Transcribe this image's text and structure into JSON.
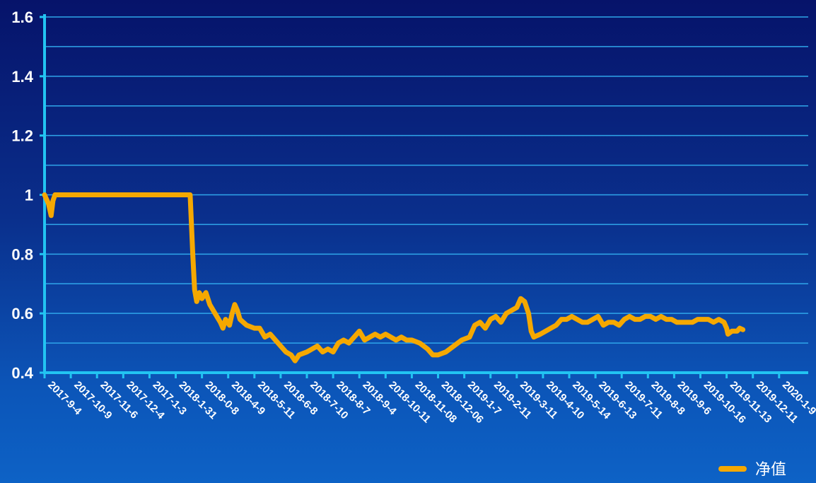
{
  "chart_data": {
    "type": "line",
    "title": "",
    "xlabel": "",
    "ylabel": "",
    "ylim": [
      0.4,
      1.6
    ],
    "yticks": [
      "0.4",
      "0.6",
      "0.8",
      "1",
      "1.2",
      "1.4",
      "1.6"
    ],
    "grid": true,
    "legend_position": "bottom-right",
    "colors": {
      "line": "#f5a800",
      "grid": "#2fa6ea",
      "axis": "#22c4f2",
      "text": "#ffffff"
    },
    "x_tick_labels": [
      "2017-9-4",
      "2017-10-9",
      "2017-11-6",
      "2017-12-4",
      "2017-1-3",
      "2018-1-31",
      "2018-0-8",
      "2018-4-9",
      "2018-5-11",
      "2018-6-8",
      "2018-7-10",
      "2018-8-7",
      "2018-9-4",
      "2018-10-11",
      "2018-11-08",
      "2018-12-06",
      "2019-1-7",
      "2019-2-11",
      "2019-3-11",
      "2019-4-10",
      "2019-5-14",
      "2019-6-13",
      "2019-7-11",
      "2019-8-8",
      "2019-9-6",
      "2019-10-16",
      "2019-11-13",
      "2019-12-11",
      "2020-1-9"
    ],
    "series": [
      {
        "name": "净值",
        "points": [
          [
            0,
            1.0
          ],
          [
            0.15,
            0.97
          ],
          [
            0.25,
            0.93
          ],
          [
            0.32,
            0.98
          ],
          [
            0.4,
            1.0
          ],
          [
            1,
            1.0
          ],
          [
            2,
            1.0
          ],
          [
            3,
            1.0
          ],
          [
            4,
            1.0
          ],
          [
            5,
            1.0
          ],
          [
            5.55,
            1.0
          ],
          [
            5.65,
            0.8
          ],
          [
            5.72,
            0.68
          ],
          [
            5.8,
            0.64
          ],
          [
            5.9,
            0.67
          ],
          [
            6.0,
            0.65
          ],
          [
            6.15,
            0.67
          ],
          [
            6.3,
            0.63
          ],
          [
            6.5,
            0.6
          ],
          [
            6.7,
            0.57
          ],
          [
            6.8,
            0.55
          ],
          [
            6.9,
            0.58
          ],
          [
            7.05,
            0.56
          ],
          [
            7.15,
            0.6
          ],
          [
            7.25,
            0.63
          ],
          [
            7.35,
            0.61
          ],
          [
            7.45,
            0.58
          ],
          [
            7.7,
            0.56
          ],
          [
            8.0,
            0.55
          ],
          [
            8.2,
            0.55
          ],
          [
            8.4,
            0.52
          ],
          [
            8.6,
            0.53
          ],
          [
            8.8,
            0.51
          ],
          [
            9.0,
            0.49
          ],
          [
            9.2,
            0.47
          ],
          [
            9.4,
            0.46
          ],
          [
            9.55,
            0.44
          ],
          [
            9.7,
            0.46
          ],
          [
            10.0,
            0.47
          ],
          [
            10.2,
            0.48
          ],
          [
            10.4,
            0.49
          ],
          [
            10.6,
            0.47
          ],
          [
            10.8,
            0.48
          ],
          [
            11.0,
            0.47
          ],
          [
            11.2,
            0.5
          ],
          [
            11.4,
            0.51
          ],
          [
            11.6,
            0.5
          ],
          [
            11.8,
            0.52
          ],
          [
            12.0,
            0.54
          ],
          [
            12.2,
            0.51
          ],
          [
            12.4,
            0.52
          ],
          [
            12.6,
            0.53
          ],
          [
            12.8,
            0.52
          ],
          [
            13.0,
            0.53
          ],
          [
            13.2,
            0.52
          ],
          [
            13.4,
            0.51
          ],
          [
            13.6,
            0.52
          ],
          [
            13.8,
            0.51
          ],
          [
            14.0,
            0.51
          ],
          [
            14.3,
            0.5
          ],
          [
            14.6,
            0.48
          ],
          [
            14.8,
            0.46
          ],
          [
            15.0,
            0.46
          ],
          [
            15.3,
            0.47
          ],
          [
            15.6,
            0.49
          ],
          [
            15.9,
            0.51
          ],
          [
            16.2,
            0.52
          ],
          [
            16.4,
            0.56
          ],
          [
            16.6,
            0.57
          ],
          [
            16.8,
            0.55
          ],
          [
            17.0,
            0.58
          ],
          [
            17.2,
            0.59
          ],
          [
            17.4,
            0.57
          ],
          [
            17.6,
            0.6
          ],
          [
            17.8,
            0.61
          ],
          [
            18.0,
            0.62
          ],
          [
            18.15,
            0.65
          ],
          [
            18.3,
            0.64
          ],
          [
            18.45,
            0.6
          ],
          [
            18.55,
            0.54
          ],
          [
            18.65,
            0.52
          ],
          [
            18.9,
            0.53
          ],
          [
            19.1,
            0.54
          ],
          [
            19.3,
            0.55
          ],
          [
            19.5,
            0.56
          ],
          [
            19.7,
            0.58
          ],
          [
            19.9,
            0.58
          ],
          [
            20.1,
            0.59
          ],
          [
            20.3,
            0.58
          ],
          [
            20.5,
            0.57
          ],
          [
            20.7,
            0.57
          ],
          [
            20.9,
            0.58
          ],
          [
            21.1,
            0.59
          ],
          [
            21.3,
            0.56
          ],
          [
            21.5,
            0.57
          ],
          [
            21.7,
            0.57
          ],
          [
            21.9,
            0.56
          ],
          [
            22.1,
            0.58
          ],
          [
            22.3,
            0.59
          ],
          [
            22.5,
            0.58
          ],
          [
            22.7,
            0.58
          ],
          [
            22.9,
            0.59
          ],
          [
            23.1,
            0.59
          ],
          [
            23.3,
            0.58
          ],
          [
            23.5,
            0.59
          ],
          [
            23.7,
            0.58
          ],
          [
            23.9,
            0.58
          ],
          [
            24.1,
            0.57
          ],
          [
            24.3,
            0.57
          ],
          [
            24.5,
            0.57
          ],
          [
            24.7,
            0.57
          ],
          [
            24.9,
            0.58
          ],
          [
            25.1,
            0.58
          ],
          [
            25.3,
            0.58
          ],
          [
            25.5,
            0.57
          ],
          [
            25.7,
            0.58
          ],
          [
            25.9,
            0.57
          ],
          [
            26.0,
            0.55
          ],
          [
            26.05,
            0.53
          ],
          [
            26.2,
            0.54
          ],
          [
            26.4,
            0.54
          ],
          [
            26.5,
            0.55
          ],
          [
            26.62,
            0.545
          ]
        ]
      }
    ]
  }
}
